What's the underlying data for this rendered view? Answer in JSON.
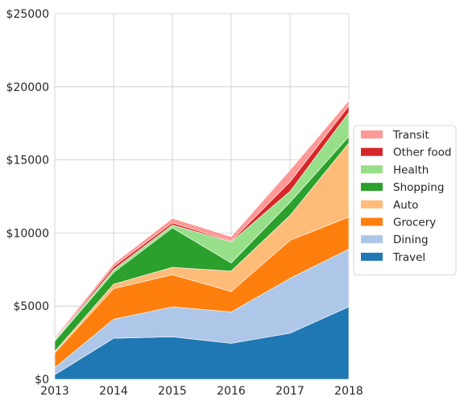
{
  "chart_data": {
    "type": "area",
    "stacked": true,
    "x": [
      2013,
      2014,
      2015,
      2016,
      2017,
      2018
    ],
    "x_tick_labels": [
      "2013",
      "2014",
      "2015",
      "2016",
      "2017",
      "2018"
    ],
    "xlim": [
      2013,
      2018
    ],
    "ylim": [
      0,
      25000
    ],
    "y_ticks": [
      0,
      5000,
      10000,
      15000,
      20000,
      25000
    ],
    "y_tick_labels": [
      "$0",
      "$5000",
      "$10000",
      "$15000",
      "$20000",
      "$25000"
    ],
    "grid": true,
    "legend_position": "right",
    "title": "",
    "xlabel": "",
    "ylabel": "",
    "series": [
      {
        "name": "Travel",
        "color": "#1f77b4",
        "values": [
          300,
          2800,
          2900,
          2450,
          3150,
          4950
        ]
      },
      {
        "name": "Dining",
        "color": "#aec7e8",
        "values": [
          500,
          1300,
          2050,
          2150,
          3750,
          3950
        ]
      },
      {
        "name": "Grocery",
        "color": "#ff7f0e",
        "values": [
          1000,
          2100,
          2200,
          1400,
          2600,
          2200
        ]
      },
      {
        "name": "Auto",
        "color": "#ffbb78",
        "values": [
          100,
          300,
          500,
          1400,
          1700,
          5050
        ]
      },
      {
        "name": "Shopping",
        "color": "#2ca02c",
        "values": [
          700,
          800,
          2700,
          550,
          900,
          450
        ]
      },
      {
        "name": "Health",
        "color": "#98df8a",
        "values": [
          100,
          200,
          200,
          1450,
          750,
          1650
        ]
      },
      {
        "name": "Other food",
        "color": "#d62728",
        "values": [
          50,
          200,
          150,
          50,
          650,
          450
        ]
      },
      {
        "name": "Transit",
        "color": "#ff9896",
        "values": [
          100,
          200,
          300,
          300,
          800,
          350
        ]
      }
    ]
  }
}
